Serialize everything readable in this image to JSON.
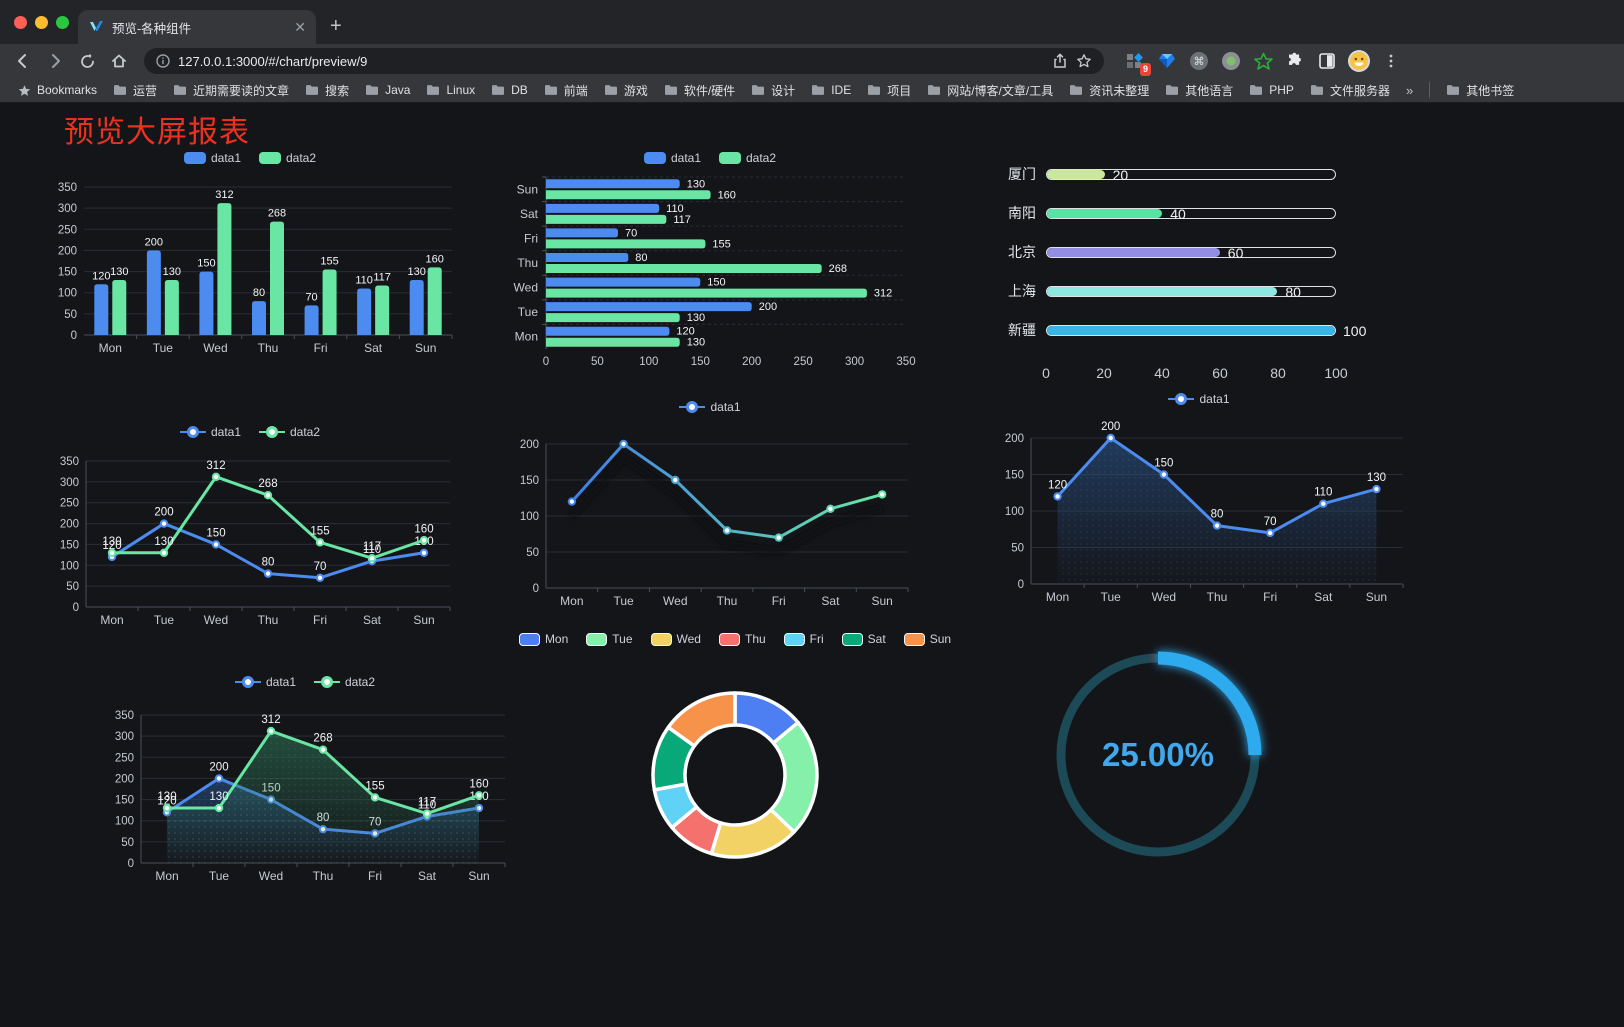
{
  "browser": {
    "tab_title": "预览-各种组件",
    "url": "127.0.0.1:3000/#/chart/preview/9",
    "extension_badge": "9",
    "bookmarks": {
      "first": "Bookmarks",
      "folders": [
        "运营",
        "近期需要读的文章",
        "搜索",
        "Java",
        "Linux",
        "DB",
        "前端",
        "游戏",
        "软件/硬件",
        "设计",
        "IDE",
        "项目",
        "网站/博客/文章/工具",
        "资讯未整理",
        "其他语言",
        "PHP",
        "文件服务器"
      ],
      "overflow": "»",
      "other": "其他书签"
    }
  },
  "page": {
    "heading": "预览大屏报表",
    "heading_color": "#ed3120",
    "background": "#141519"
  },
  "chart_data": [
    {
      "id": "bar-grouped",
      "type": "bar",
      "orientation": "vertical",
      "categories": [
        "Mon",
        "Tue",
        "Wed",
        "Thu",
        "Fri",
        "Sat",
        "Sun"
      ],
      "series": [
        {
          "name": "data1",
          "color": "#4C8BF0",
          "values": [
            120,
            200,
            150,
            80,
            70,
            110,
            130
          ]
        },
        {
          "name": "data2",
          "color": "#69E6A4",
          "values": [
            130,
            130,
            312,
            268,
            155,
            117,
            160
          ]
        }
      ],
      "ylim": [
        0,
        350
      ],
      "ytick": 50,
      "value_labels": true,
      "legend_position": "top",
      "grid": true
    },
    {
      "id": "bar-horizontal",
      "type": "bar",
      "orientation": "horizontal",
      "categories_top_to_bottom": [
        "Sun",
        "Sat",
        "Fri",
        "Thu",
        "Wed",
        "Tue",
        "Mon"
      ],
      "series": [
        {
          "name": "data1",
          "color": "#4C8BF0",
          "values_top_to_bottom": [
            130,
            110,
            70,
            80,
            150,
            200,
            120
          ]
        },
        {
          "name": "data2",
          "color": "#69E6A4",
          "values_top_to_bottom": [
            160,
            117,
            155,
            268,
            312,
            130,
            130
          ]
        }
      ],
      "xlim": [
        0,
        350
      ],
      "xtick": 50,
      "value_labels": true,
      "legend_position": "top"
    },
    {
      "id": "capsule",
      "type": "bar",
      "subtype": "capsule",
      "categories": [
        "厦门",
        "南阳",
        "北京",
        "上海",
        "新疆"
      ],
      "values": [
        20,
        40,
        60,
        80,
        100
      ],
      "colors": [
        "#C9E89A",
        "#58E3A4",
        "#918EE3",
        "#8CE8E0",
        "#38B6E8"
      ],
      "xlim": [
        0,
        100
      ],
      "xtick": 20,
      "value_labels": true
    },
    {
      "id": "line-two",
      "type": "line",
      "categories": [
        "Mon",
        "Tue",
        "Wed",
        "Thu",
        "Fri",
        "Sat",
        "Sun"
      ],
      "series": [
        {
          "name": "data1",
          "color": "#4C8BF0",
          "values": [
            120,
            200,
            150,
            80,
            70,
            110,
            130
          ]
        },
        {
          "name": "data2",
          "color": "#69E6A4",
          "values": [
            130,
            130,
            312,
            268,
            155,
            117,
            160
          ]
        }
      ],
      "ylim": [
        0,
        350
      ],
      "ytick": 50,
      "value_labels": true,
      "markers": true,
      "legend_position": "top"
    },
    {
      "id": "line-gradient",
      "type": "line",
      "categories": [
        "Mon",
        "Tue",
        "Wed",
        "Thu",
        "Fri",
        "Sat",
        "Sun"
      ],
      "series": [
        {
          "name": "data1",
          "color": "#4C8BF0",
          "values": [
            120,
            200,
            150,
            80,
            70,
            110,
            130
          ]
        }
      ],
      "ylim": [
        0,
        200
      ],
      "ytick": 50,
      "value_labels": false,
      "markers": true,
      "gradient_stroke": [
        "#3D7EEA",
        "#69E6A4"
      ],
      "shadow": true,
      "legend_position": "top"
    },
    {
      "id": "line-area-one",
      "type": "area",
      "categories": [
        "Mon",
        "Tue",
        "Wed",
        "Thu",
        "Fri",
        "Sat",
        "Sun"
      ],
      "series": [
        {
          "name": "data1",
          "color": "#4C8BF0",
          "values": [
            120,
            200,
            150,
            80,
            70,
            110,
            130
          ],
          "area": "#2B5A96"
        }
      ],
      "ylim": [
        0,
        200
      ],
      "ytick": 50,
      "value_labels": true,
      "markers": true,
      "legend_position": "top"
    },
    {
      "id": "line-area-two",
      "type": "area",
      "categories": [
        "Mon",
        "Tue",
        "Wed",
        "Thu",
        "Fri",
        "Sat",
        "Sun"
      ],
      "series": [
        {
          "name": "data1",
          "color": "#4C8BF0",
          "values": [
            120,
            200,
            150,
            80,
            70,
            110,
            130
          ],
          "area": "#2B5A96"
        },
        {
          "name": "data2",
          "color": "#69E6A4",
          "values": [
            130,
            130,
            312,
            268,
            155,
            117,
            160
          ],
          "area": "#2E7D5B"
        }
      ],
      "ylim": [
        0,
        350
      ],
      "ytick": 50,
      "value_labels": true,
      "markers": true,
      "legend_position": "top"
    },
    {
      "id": "donut",
      "type": "pie",
      "inner_radius_ratio": 0.61,
      "categories": [
        "Mon",
        "Tue",
        "Wed",
        "Thu",
        "Fri",
        "Sat",
        "Sun"
      ],
      "values": [
        120,
        200,
        150,
        80,
        70,
        110,
        130
      ],
      "colors": [
        "#4D7EF2",
        "#84F0AA",
        "#F2D264",
        "#F4716D",
        "#5FD2F5",
        "#09A878",
        "#F6924A"
      ],
      "border_color": "#FFFFFF",
      "legend_position": "top"
    },
    {
      "id": "gauge",
      "type": "gauge",
      "value": 25,
      "max": 100,
      "label": "25.00%",
      "color": "#2FAAEF",
      "track_color": "#1C4A57",
      "text_color": "#41A8EC"
    }
  ]
}
